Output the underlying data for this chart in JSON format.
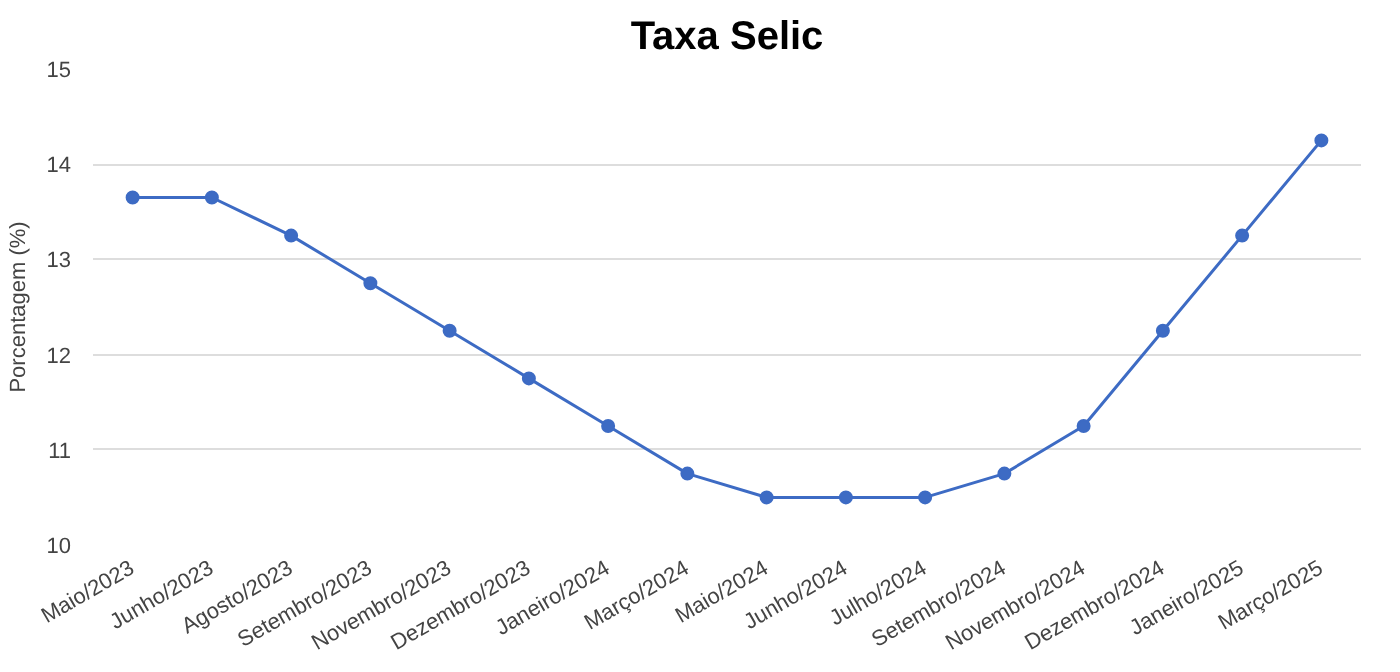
{
  "chart_data": {
    "type": "line",
    "title": "Taxa Selic",
    "ylabel": "Porcentagem (%)",
    "categories": [
      "Maio/2023",
      "Junho/2023",
      "Agosto/2023",
      "Setembro/2023",
      "Novembro/2023",
      "Dezembro/2023",
      "Janeiro/2024",
      "Março/2024",
      "Maio/2024",
      "Junho/2024",
      "Julho/2024",
      "Setembro/2024",
      "Novembro/2024",
      "Dezembro/2024",
      "Janeiro/2025",
      "Março/2025"
    ],
    "series": [
      {
        "color": "#3d6bc4",
        "values": [
          13.65,
          13.65,
          13.25,
          12.75,
          12.25,
          11.75,
          11.25,
          10.75,
          10.5,
          10.5,
          10.5,
          10.75,
          11.25,
          12.25,
          13.25,
          14.25
        ]
      }
    ],
    "ylim": [
      10,
      15
    ],
    "yticks": [
      10,
      11,
      12,
      13,
      14,
      15
    ],
    "grid": "y",
    "marker": "circle",
    "line_style": "solid"
  }
}
